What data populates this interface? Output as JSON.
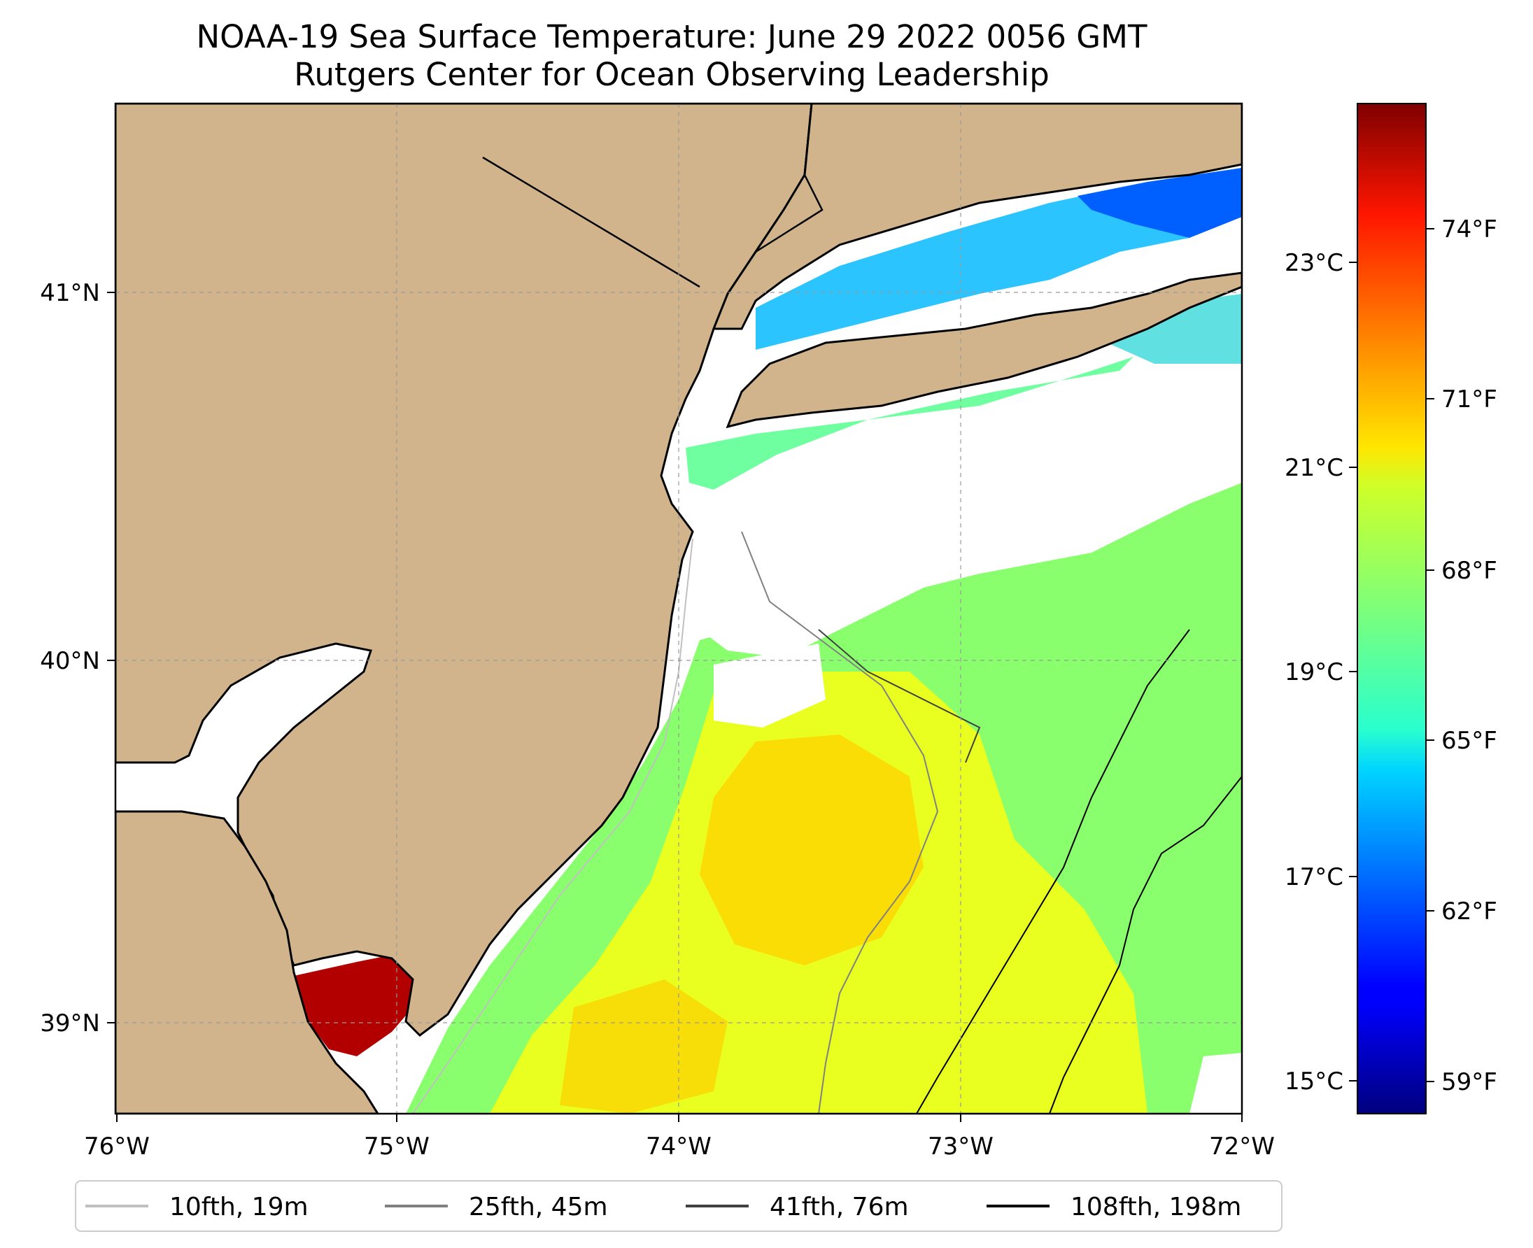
{
  "title": {
    "line1": "NOAA-19 Sea Surface Temperature: June 29 2022 0056 GMT",
    "line2": "Rutgers Center for Ocean Observing Leadership"
  },
  "map": {
    "lon_range": [
      -76,
      -72
    ],
    "lat_range": [
      38.75,
      41.5
    ],
    "lon_labels": [
      "76°W",
      "75°W",
      "74°W",
      "73°W",
      "72°W"
    ],
    "lat_labels": [
      "41°N",
      "40°N",
      "39°N"
    ],
    "land_color": "#d2b48c",
    "no_data_color": "#ffffff"
  },
  "colorbar": {
    "celsius_labels": [
      "23°C",
      "21°C",
      "19°C",
      "17°C",
      "15°C"
    ],
    "fahrenheit_labels": [
      "74°F",
      "71°F",
      "68°F",
      "65°F",
      "62°F",
      "59°F"
    ],
    "colormap": "jet"
  },
  "legend": {
    "items": [
      {
        "label": "10fth, 19m",
        "color": "#c0c0c0"
      },
      {
        "label": "25fth, 45m",
        "color": "#808080"
      },
      {
        "label": "41fth, 76m",
        "color": "#404040"
      },
      {
        "label": "108fth, 198m",
        "color": "#000000"
      }
    ]
  }
}
